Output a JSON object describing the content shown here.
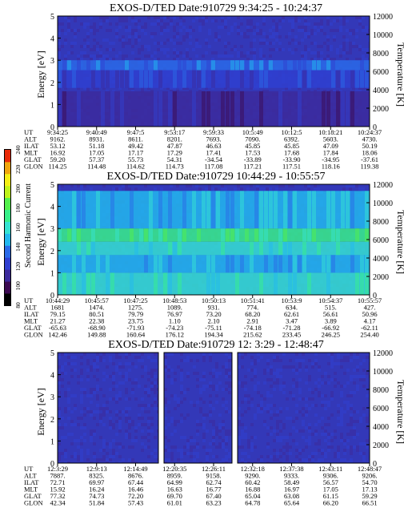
{
  "colors": {
    "colormap": [
      "#000000",
      "#3c0a52",
      "#3c2a9c",
      "#2f3fd0",
      "#2a6ae8",
      "#22b8ef",
      "#35e3d2",
      "#38f08a",
      "#53f04c",
      "#bff21a",
      "#f5ee15",
      "#f0a60e",
      "#ea2a08"
    ],
    "background_field": "#3338b8"
  },
  "colorbar": {
    "label": "Second Harmonic Current",
    "ticks": [
      "80",
      "100",
      "120",
      "140",
      "160",
      "180",
      "200",
      "220",
      "240"
    ]
  },
  "chart_data": [
    {
      "type": "heatmap",
      "title": "EXOS-D/TED   Date:910729   9:34:25 - 10:24:37",
      "ylabel": "Energy [eV]",
      "y2label": "Temperature [K]",
      "ylim": [
        0,
        5
      ],
      "y2lim": [
        0,
        12000
      ],
      "yticks": [
        "0",
        "1",
        "2",
        "3",
        "4",
        "5"
      ],
      "y2ticks": [
        "0",
        "2000",
        "4000",
        "6000",
        "8000",
        "10000",
        "12000"
      ],
      "bands": [
        {
          "y0": 2.55,
          "y1": 3.0,
          "level": 4
        },
        {
          "y0": 1.75,
          "y1": 2.55,
          "level": 3
        },
        {
          "y0": 0.0,
          "y1": 1.6,
          "level": 2
        }
      ],
      "ephemeris_labels": [
        "UT",
        "ALT",
        "ILAT",
        "MLT",
        "GLAT",
        "GLON"
      ],
      "ephemeris": [
        [
          "9:34:25",
          "9162.",
          "53.12",
          "16.92",
          "59.20",
          "114.25"
        ],
        [
          "9:40:49",
          "8931.",
          "51.18",
          "17.05",
          "57.37",
          "114.48"
        ],
        [
          "9:47:5",
          "8611.",
          "49.42",
          "17.17",
          "55.73",
          "114.62"
        ],
        [
          "9:53:17",
          "8201.",
          "47.87",
          "17.29",
          "54.31",
          "114.73"
        ],
        [
          "9:59:33",
          "7693.",
          "46.63",
          "17.41",
          "-34.54",
          "117.08"
        ],
        [
          "10:5:49",
          "7090.",
          "45.85",
          "17.53",
          "-33.89",
          "117.21"
        ],
        [
          "10:12:5",
          "6392.",
          "45.85",
          "17.68",
          "-33.90",
          "117.51"
        ],
        [
          "10:18:21",
          "5603.",
          "47.09",
          "17.84",
          "-34.95",
          "118.16"
        ],
        [
          "10:24:37",
          "4730.",
          "50.19",
          "18.06",
          "-37.61",
          "119.38"
        ]
      ]
    },
    {
      "type": "heatmap",
      "title": "EXOS-D/TED   Date:910729   10:44:29 - 10:55:57",
      "ylabel": "Energy [eV]",
      "y2label": "Temperature [K]",
      "ylim": [
        0,
        5
      ],
      "y2lim": [
        0,
        12000
      ],
      "yticks": [
        "0",
        "1",
        "2",
        "3",
        "4",
        "5"
      ],
      "y2ticks": [
        "0",
        "2000",
        "4000",
        "6000",
        "8000",
        "10000",
        "12000"
      ],
      "bands": [
        {
          "y0": 3.0,
          "y1": 4.7,
          "level": 5
        },
        {
          "y0": 2.4,
          "y1": 3.0,
          "level": 7
        },
        {
          "y0": 1.8,
          "y1": 2.4,
          "level": 6
        },
        {
          "y0": 1.0,
          "y1": 1.8,
          "level": 5
        },
        {
          "y0": 0.0,
          "y1": 1.0,
          "level": 6
        }
      ],
      "ephemeris_labels": [
        "UT",
        "ALT",
        "ILAT",
        "MLT",
        "GLAT",
        "GLON"
      ],
      "ephemeris": [
        [
          "10:44:29",
          "1681",
          "79.15",
          "21.27",
          "-65.63",
          "142.46"
        ],
        [
          "10:45:57",
          "1474.",
          "80.51",
          "22.38",
          "-68.90",
          "149.88"
        ],
        [
          "10:47:25",
          "1275.",
          "79.79",
          "23.75",
          "-71.93",
          "160.64"
        ],
        [
          "10:48:53",
          "1089.",
          "76.97",
          "1.10",
          "-74.23",
          "176.12"
        ],
        [
          "10:50:13",
          "931.",
          "73.20",
          "2.10",
          "-75.11",
          "194.34"
        ],
        [
          "10:51:41",
          "774.",
          "68.20",
          "2.91",
          "-74.18",
          "215.62"
        ],
        [
          "10:53:9",
          "634.",
          "62.61",
          "3.47",
          "-71.28",
          "233.45"
        ],
        [
          "10:54:37",
          "515.",
          "56.61",
          "3.89",
          "-66.92",
          "246.25"
        ],
        [
          "10:55:57",
          "427.",
          "50.96",
          "4.17",
          "-62.11",
          "254.40"
        ]
      ]
    },
    {
      "type": "heatmap",
      "title": "EXOS-D/TED   Date:910729   12: 3:29 - 12:48:47",
      "ylabel": "Energy [eV]",
      "y2label": "Temperature [K]",
      "ylim": [
        0,
        5
      ],
      "y2lim": [
        0,
        12000
      ],
      "yticks": [
        "0",
        "1",
        "2",
        "3",
        "4",
        "5"
      ],
      "y2ticks": [
        "0",
        "2000",
        "4000",
        "6000",
        "8000",
        "10000",
        "12000"
      ],
      "bands": [],
      "ephemeris_labels": [
        "UT",
        "ALT",
        "ILAT",
        "MLT",
        "GLAT",
        "GLON"
      ],
      "ephemeris": [
        [
          "12:3:29",
          "7887.",
          "72.71",
          "15.92",
          "77.32",
          "42.34"
        ],
        [
          "12:9:13",
          "8325.",
          "69.97",
          "16.24",
          "74.73",
          "51.84"
        ],
        [
          "12:14:49",
          "8676.",
          "67.44",
          "16.46",
          "72.20",
          "57.43"
        ],
        [
          "12:20:35",
          "8959.",
          "64.99",
          "16.63",
          "69.70",
          "61.01"
        ],
        [
          "12:26:11",
          "9158.",
          "62.74",
          "16.77",
          "67.40",
          "63.23"
        ],
        [
          "12:32:18",
          "9290.",
          "60.42",
          "16.88",
          "65.04",
          "64.78"
        ],
        [
          "12:37:38",
          "9333.",
          "58.49",
          "16.97",
          "63.08",
          "65.64"
        ],
        [
          "12:43:11",
          "9306.",
          "56.57",
          "17.05",
          "61.15",
          "66.20"
        ],
        [
          "12:48:47",
          "9206.",
          "54.70",
          "17.13",
          "59.29",
          "66.51"
        ]
      ]
    }
  ]
}
